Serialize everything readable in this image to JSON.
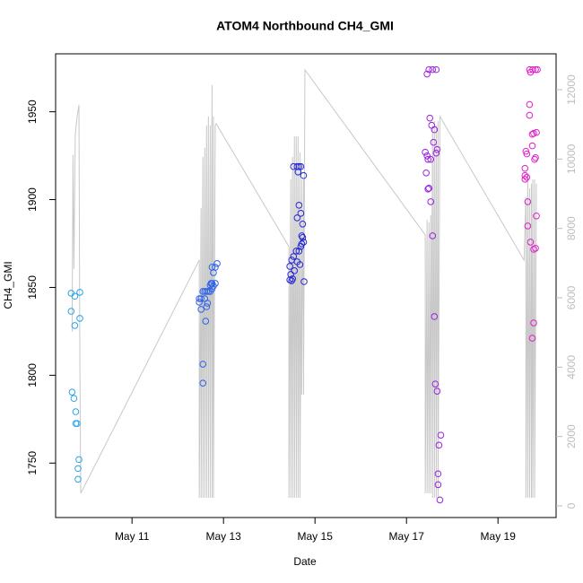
{
  "chart_data": {
    "type": "scatter",
    "title": "ATOM4 Northbound CH4_GMI",
    "xlabel": "Date",
    "ylabel": "CH4_GMI",
    "xlim": [
      9.33,
      20.27
    ],
    "xticks": [
      {
        "value": 11,
        "label": "May 11"
      },
      {
        "value": 13,
        "label": "May 13"
      },
      {
        "value": 15,
        "label": "May 15"
      },
      {
        "value": 17,
        "label": "May 17"
      },
      {
        "value": 19,
        "label": "May 19"
      }
    ],
    "ylim": [
      1719,
      1983
    ],
    "yticks": [
      1750,
      1800,
      1850,
      1900,
      1950
    ],
    "y2lim": [
      -336,
      13035
    ],
    "y2ticks": [
      0,
      2000,
      4000,
      6000,
      8000,
      10000,
      12000
    ],
    "y2color": "#bdbdbd",
    "series": [
      {
        "type": "scatter",
        "color": "#29a3e6",
        "x": [
          9.67,
          9.75,
          9.67,
          9.75,
          9.69,
          9.73,
          9.77,
          9.77,
          9.8,
          9.84,
          9.82,
          9.82,
          9.86,
          9.86
        ],
        "values": [
          1846.7,
          1845,
          1836.4,
          1828.3,
          1790.4,
          1786.8,
          1779.2,
          1772.5,
          1772.5,
          1752,
          1746.9,
          1740.8,
          1847.2,
          1832.4
        ]
      },
      {
        "type": "scatter",
        "color": "#2f62e8",
        "x": [
          12.47,
          12.51,
          12.55,
          12.59,
          12.63,
          12.67,
          12.71,
          12.75,
          12.78,
          12.82,
          12.86,
          12.82,
          12.75,
          12.78,
          12.55,
          12.55,
          12.61,
          12.63,
          12.51,
          12.47,
          12.59,
          12.71,
          12.75,
          12.65,
          12.73
        ],
        "values": [
          1841.6,
          1843.6,
          1847.7,
          1847.7,
          1847.7,
          1847.7,
          1847.7,
          1852.3,
          1850.8,
          1852.3,
          1863.6,
          1861.5,
          1861.5,
          1858.4,
          1806.3,
          1795.5,
          1830.8,
          1839,
          1837.5,
          1843.6,
          1843.6,
          1851.3,
          1849.2,
          1841,
          1852.3
        ]
      },
      {
        "type": "scatter",
        "color": "#2626d4",
        "x": [
          14.53,
          14.61,
          14.69,
          14.65,
          14.63,
          14.75,
          14.65,
          14.61,
          14.69,
          14.73,
          14.71,
          14.75,
          14.69,
          14.59,
          14.65,
          14.53,
          14.49,
          14.45,
          14.47,
          14.51,
          14.45,
          14.49,
          14.55,
          14.61,
          14.67,
          14.71,
          14.76,
          14.73
        ],
        "values": [
          1918.8,
          1918.8,
          1918.8,
          1918.8,
          1915.7,
          1913.7,
          1896.8,
          1889.6,
          1892.2,
          1886.1,
          1879.4,
          1875.8,
          1873.3,
          1870.7,
          1870.7,
          1867.6,
          1865.6,
          1862,
          1857.4,
          1854.9,
          1854.3,
          1853.8,
          1859.5,
          1864.6,
          1863,
          1874.8,
          1853.3,
          1878.4
        ]
      },
      {
        "type": "scatter",
        "color": "#9a22e0",
        "x": [
          17.49,
          17.57,
          17.65,
          17.45,
          17.51,
          17.55,
          17.61,
          17.59,
          17.41,
          17.45,
          17.47,
          17.53,
          17.65,
          17.67,
          17.43,
          17.49,
          17.47,
          17.53,
          17.57,
          17.61,
          17.63,
          17.67,
          17.75,
          17.71,
          17.69,
          17.69,
          17.73
        ],
        "values": [
          1974,
          1974,
          1974,
          1971.5,
          1946.4,
          1942.3,
          1939.8,
          1932.6,
          1927,
          1924.9,
          1922.9,
          1922.9,
          1926.5,
          1928.5,
          1915.2,
          1906.5,
          1906,
          1898.8,
          1879.4,
          1833.4,
          1795,
          1790.9,
          1765.9,
          1760.2,
          1743.9,
          1737.7,
          1729
        ]
      },
      {
        "type": "scatter",
        "color": "#e020c8",
        "x": [
          19.69,
          19.76,
          19.82,
          19.86,
          19.71,
          19.69,
          19.69,
          19.78,
          19.75,
          19.84,
          19.75,
          19.61,
          19.63,
          19.59,
          19.59,
          19.63,
          19.8,
          19.82,
          19.59,
          19.65,
          19.65,
          19.71,
          19.78,
          19.82,
          19.78,
          19.75,
          19.84
        ],
        "values": [
          1974,
          1974,
          1974,
          1974,
          1972.5,
          1954.1,
          1948,
          1937.7,
          1937.2,
          1938.2,
          1930.6,
          1927.5,
          1926,
          1917.8,
          1913.7,
          1912.7,
          1922.9,
          1923.9,
          1911.6,
          1898.8,
          1885,
          1875.8,
          1871.7,
          1872.3,
          1829.8,
          1821.1,
          1890.7
        ]
      },
      {
        "type": "line",
        "axis": "y2",
        "color": "#c8c8c8",
        "x": [
          9.69,
          9.71,
          9.73,
          9.76,
          9.8,
          9.84,
          9.86,
          9.88,
          12.47,
          12.47,
          12.51,
          12.51,
          12.55,
          12.55,
          12.59,
          12.59,
          12.63,
          12.63,
          12.67,
          12.67,
          12.71,
          12.71,
          12.75,
          12.75,
          12.78,
          12.78,
          12.82,
          12.84,
          14.43,
          14.43,
          14.47,
          14.47,
          14.51,
          14.51,
          14.55,
          14.55,
          14.59,
          14.59,
          14.63,
          14.63,
          14.67,
          14.67,
          14.71,
          14.71,
          14.75,
          14.75,
          14.78,
          17.41,
          17.41,
          17.45,
          17.45,
          17.49,
          17.49,
          17.53,
          17.53,
          17.57,
          17.57,
          17.61,
          17.61,
          17.65,
          17.65,
          17.69,
          17.69,
          17.73,
          19.57,
          19.61,
          19.61,
          19.65,
          19.65,
          19.69,
          19.69,
          19.73,
          19.73,
          19.76,
          19.76,
          19.8,
          19.8,
          19.84
        ],
        "values": [
          5019,
          10115,
          6830,
          10710,
          11228,
          11564,
          4243,
          362,
          7088,
          233,
          8589,
          233,
          10063,
          233,
          10322,
          233,
          10969,
          233,
          11228,
          233,
          10969,
          233,
          12133,
          233,
          11228,
          233,
          10969,
          11021,
          7476,
          233,
          9417,
          233,
          10063,
          233,
          10658,
          233,
          10658,
          233,
          10658,
          233,
          10193,
          233,
          9417,
          3208,
          9417,
          3208,
          12573,
          7813,
          362,
          8253,
          362,
          8175,
          362,
          8382,
          362,
          10969,
          233,
          11098,
          233,
          10969,
          233,
          11098,
          233,
          11228,
          7088,
          8899,
          233,
          9417,
          233,
          9158,
          233,
          9288,
          233,
          9417,
          233,
          9417,
          233,
          9288
        ]
      }
    ]
  }
}
